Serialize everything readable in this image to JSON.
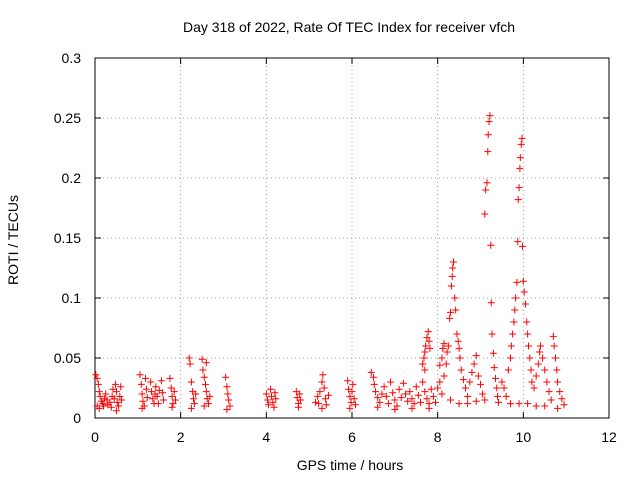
{
  "chart_data": {
    "type": "scatter",
    "title": "Day 318 of 2022, Rate Of TEC Index for receiver vfch",
    "xlabel": "GPS time / hours",
    "ylabel": "ROTI / TECUs",
    "xlim": [
      0,
      12
    ],
    "ylim": [
      0,
      0.3
    ],
    "xticks": [
      0,
      2,
      4,
      6,
      8,
      10,
      12
    ],
    "xtick_labels": [
      "0",
      "2",
      "4",
      "6",
      "8",
      "10",
      "12"
    ],
    "yticks": [
      0,
      0.05,
      0.1,
      0.15,
      0.2,
      0.25,
      0.3
    ],
    "ytick_labels": [
      "0",
      "0.05",
      "0.1",
      "0.15",
      "0.2",
      "0.25",
      "0.3"
    ],
    "grid": true,
    "marker": "+",
    "color": "#ff0000",
    "series": [
      {
        "name": "ROTI",
        "points": [
          [
            0.02,
            0.036
          ],
          [
            0.05,
            0.033
          ],
          [
            0.08,
            0.028
          ],
          [
            0.1,
            0.022
          ],
          [
            0.12,
            0.018
          ],
          [
            0.15,
            0.014
          ],
          [
            0.18,
            0.012
          ],
          [
            0.22,
            0.016
          ],
          [
            0.25,
            0.02
          ],
          [
            0.28,
            0.015
          ],
          [
            0.3,
            0.011
          ],
          [
            0.05,
            0.01
          ],
          [
            0.1,
            0.008
          ],
          [
            0.2,
            0.01
          ],
          [
            0.35,
            0.013
          ],
          [
            0.4,
            0.018
          ],
          [
            0.42,
            0.024
          ],
          [
            0.45,
            0.016
          ],
          [
            0.48,
            0.028
          ],
          [
            0.5,
            0.022
          ],
          [
            0.52,
            0.013
          ],
          [
            0.55,
            0.01
          ],
          [
            0.58,
            0.018
          ],
          [
            0.6,
            0.026
          ],
          [
            0.62,
            0.015
          ],
          [
            0.38,
            0.009
          ],
          [
            0.5,
            0.006
          ],
          [
            1.05,
            0.036
          ],
          [
            1.08,
            0.028
          ],
          [
            1.1,
            0.02
          ],
          [
            1.12,
            0.014
          ],
          [
            1.15,
            0.01
          ],
          [
            1.18,
            0.033
          ],
          [
            1.2,
            0.024
          ],
          [
            1.22,
            0.017
          ],
          [
            1.1,
            0.008
          ],
          [
            1.3,
            0.03
          ],
          [
            1.32,
            0.022
          ],
          [
            1.35,
            0.016
          ],
          [
            1.38,
            0.012
          ],
          [
            1.4,
            0.02
          ],
          [
            1.42,
            0.026
          ],
          [
            1.45,
            0.018
          ],
          [
            1.48,
            0.012
          ],
          [
            1.5,
            0.023
          ],
          [
            1.55,
            0.031
          ],
          [
            1.58,
            0.021
          ],
          [
            1.6,
            0.015
          ],
          [
            1.75,
            0.033
          ],
          [
            1.78,
            0.025
          ],
          [
            1.8,
            0.018
          ],
          [
            1.82,
            0.012
          ],
          [
            1.85,
            0.022
          ],
          [
            1.88,
            0.015
          ],
          [
            1.8,
            0.009
          ],
          [
            2.2,
            0.05
          ],
          [
            2.22,
            0.045
          ],
          [
            2.25,
            0.03
          ],
          [
            2.28,
            0.022
          ],
          [
            2.3,
            0.016
          ],
          [
            2.32,
            0.012
          ],
          [
            2.25,
            0.008
          ],
          [
            2.35,
            0.02
          ],
          [
            2.5,
            0.049
          ],
          [
            2.52,
            0.04
          ],
          [
            2.55,
            0.034
          ],
          [
            2.58,
            0.028
          ],
          [
            2.6,
            0.022
          ],
          [
            2.62,
            0.016
          ],
          [
            2.65,
            0.012
          ],
          [
            2.68,
            0.018
          ],
          [
            2.55,
            0.01
          ],
          [
            2.6,
            0.046
          ],
          [
            3.05,
            0.034
          ],
          [
            3.08,
            0.026
          ],
          [
            3.1,
            0.02
          ],
          [
            3.12,
            0.015
          ],
          [
            3.15,
            0.01
          ],
          [
            3.08,
            0.007
          ],
          [
            4.0,
            0.02
          ],
          [
            4.03,
            0.015
          ],
          [
            4.05,
            0.011
          ],
          [
            4.1,
            0.024
          ],
          [
            4.12,
            0.018
          ],
          [
            4.15,
            0.013
          ],
          [
            4.18,
            0.009
          ],
          [
            4.2,
            0.021
          ],
          [
            4.22,
            0.016
          ],
          [
            4.7,
            0.022
          ],
          [
            4.72,
            0.017
          ],
          [
            4.75,
            0.012
          ],
          [
            4.78,
            0.02
          ],
          [
            4.8,
            0.015
          ],
          [
            4.75,
            0.009
          ],
          [
            5.15,
            0.013
          ],
          [
            5.2,
            0.018
          ],
          [
            5.22,
            0.012
          ],
          [
            5.25,
            0.022
          ],
          [
            5.3,
            0.03
          ],
          [
            5.32,
            0.036
          ],
          [
            5.35,
            0.025
          ],
          [
            5.38,
            0.016
          ],
          [
            5.4,
            0.011
          ],
          [
            5.45,
            0.019
          ],
          [
            5.3,
            0.008
          ],
          [
            5.9,
            0.031
          ],
          [
            5.92,
            0.024
          ],
          [
            5.95,
            0.018
          ],
          [
            5.98,
            0.013
          ],
          [
            6.0,
            0.022
          ],
          [
            6.02,
            0.028
          ],
          [
            6.05,
            0.016
          ],
          [
            6.08,
            0.011
          ],
          [
            5.95,
            0.008
          ],
          [
            6.45,
            0.038
          ],
          [
            6.5,
            0.034
          ],
          [
            6.52,
            0.028
          ],
          [
            6.55,
            0.022
          ],
          [
            6.6,
            0.017
          ],
          [
            6.65,
            0.013
          ],
          [
            6.7,
            0.02
          ],
          [
            6.75,
            0.026
          ],
          [
            6.8,
            0.018
          ],
          [
            6.85,
            0.012
          ],
          [
            6.9,
            0.03
          ],
          [
            6.95,
            0.021
          ],
          [
            7.0,
            0.015
          ],
          [
            7.05,
            0.01
          ],
          [
            7.1,
            0.024
          ],
          [
            7.15,
            0.017
          ],
          [
            7.2,
            0.029
          ],
          [
            7.25,
            0.02
          ],
          [
            7.3,
            0.014
          ],
          [
            7.35,
            0.022
          ],
          [
            7.4,
            0.016
          ],
          [
            7.45,
            0.012
          ],
          [
            7.5,
            0.026
          ],
          [
            7.55,
            0.019
          ],
          [
            7.6,
            0.013
          ],
          [
            7.65,
            0.03
          ],
          [
            7.7,
            0.022
          ],
          [
            7.75,
            0.016
          ],
          [
            7.8,
            0.012
          ],
          [
            7.85,
            0.024
          ],
          [
            7.9,
            0.018
          ],
          [
            7.95,
            0.013
          ],
          [
            6.6,
            0.009
          ],
          [
            7.0,
            0.007
          ],
          [
            7.4,
            0.008
          ],
          [
            7.8,
            0.008
          ],
          [
            7.65,
            0.045
          ],
          [
            7.68,
            0.05
          ],
          [
            7.7,
            0.055
          ],
          [
            7.72,
            0.06
          ],
          [
            7.75,
            0.067
          ],
          [
            7.78,
            0.072
          ],
          [
            7.8,
            0.064
          ],
          [
            7.82,
            0.058
          ],
          [
            7.7,
            0.04
          ],
          [
            8.0,
            0.025
          ],
          [
            8.05,
            0.03
          ],
          [
            8.1,
            0.02
          ],
          [
            8.15,
            0.035
          ],
          [
            8.2,
            0.045
          ],
          [
            8.22,
            0.055
          ],
          [
            8.25,
            0.06
          ],
          [
            8.28,
            0.083
          ],
          [
            8.3,
            0.088
          ],
          [
            8.32,
            0.11
          ],
          [
            8.34,
            0.118
          ],
          [
            8.35,
            0.125
          ],
          [
            8.37,
            0.13
          ],
          [
            8.4,
            0.1
          ],
          [
            8.42,
            0.09
          ],
          [
            8.45,
            0.07
          ],
          [
            8.48,
            0.064
          ],
          [
            8.5,
            0.058
          ],
          [
            8.52,
            0.05
          ],
          [
            8.55,
            0.04
          ],
          [
            8.6,
            0.032
          ],
          [
            8.65,
            0.025
          ],
          [
            8.7,
            0.018
          ],
          [
            8.75,
            0.03
          ],
          [
            8.8,
            0.038
          ],
          [
            8.85,
            0.045
          ],
          [
            8.9,
            0.052
          ],
          [
            8.95,
            0.035
          ],
          [
            9.0,
            0.028
          ],
          [
            9.05,
            0.02
          ],
          [
            9.1,
            0.015
          ],
          [
            8.3,
            0.015
          ],
          [
            8.5,
            0.012
          ],
          [
            8.7,
            0.012
          ],
          [
            8.9,
            0.014
          ],
          [
            8.05,
            0.044
          ],
          [
            8.1,
            0.05
          ],
          [
            8.12,
            0.058
          ],
          [
            8.15,
            0.062
          ],
          [
            9.1,
            0.17
          ],
          [
            9.12,
            0.19
          ],
          [
            9.15,
            0.196
          ],
          [
            9.17,
            0.222
          ],
          [
            9.18,
            0.236
          ],
          [
            9.2,
            0.247
          ],
          [
            9.22,
            0.252
          ],
          [
            9.24,
            0.144
          ],
          [
            9.25,
            0.096
          ],
          [
            9.27,
            0.07
          ],
          [
            9.3,
            0.054
          ],
          [
            9.32,
            0.042
          ],
          [
            9.35,
            0.033
          ],
          [
            9.38,
            0.025
          ],
          [
            9.4,
            0.018
          ],
          [
            9.42,
            0.013
          ],
          [
            9.5,
            0.03
          ],
          [
            9.55,
            0.025
          ],
          [
            9.6,
            0.018
          ],
          [
            9.65,
            0.04
          ],
          [
            9.7,
            0.05
          ],
          [
            9.72,
            0.06
          ],
          [
            9.75,
            0.07
          ],
          [
            9.78,
            0.08
          ],
          [
            9.8,
            0.09
          ],
          [
            9.82,
            0.1
          ],
          [
            9.85,
            0.113
          ],
          [
            9.87,
            0.147
          ],
          [
            9.88,
            0.182
          ],
          [
            9.9,
            0.192
          ],
          [
            9.92,
            0.208
          ],
          [
            9.93,
            0.217
          ],
          [
            9.95,
            0.228
          ],
          [
            9.97,
            0.233
          ],
          [
            9.98,
            0.143
          ],
          [
            10.0,
            0.114
          ],
          [
            10.02,
            0.105
          ],
          [
            10.05,
            0.095
          ],
          [
            10.08,
            0.08
          ],
          [
            10.1,
            0.07
          ],
          [
            10.12,
            0.06
          ],
          [
            10.15,
            0.05
          ],
          [
            10.18,
            0.04
          ],
          [
            10.2,
            0.03
          ],
          [
            9.7,
            0.012
          ],
          [
            9.9,
            0.012
          ],
          [
            10.1,
            0.012
          ],
          [
            10.25,
            0.025
          ],
          [
            10.3,
            0.035
          ],
          [
            10.35,
            0.045
          ],
          [
            10.38,
            0.055
          ],
          [
            10.4,
            0.06
          ],
          [
            10.45,
            0.05
          ],
          [
            10.5,
            0.04
          ],
          [
            10.55,
            0.03
          ],
          [
            10.6,
            0.022
          ],
          [
            10.65,
            0.015
          ],
          [
            10.3,
            0.01
          ],
          [
            10.5,
            0.01
          ],
          [
            10.7,
            0.068
          ],
          [
            10.72,
            0.06
          ],
          [
            10.75,
            0.05
          ],
          [
            10.78,
            0.04
          ],
          [
            10.8,
            0.03
          ],
          [
            10.85,
            0.022
          ],
          [
            10.9,
            0.016
          ],
          [
            10.95,
            0.011
          ],
          [
            10.8,
            0.008
          ]
        ]
      }
    ]
  }
}
